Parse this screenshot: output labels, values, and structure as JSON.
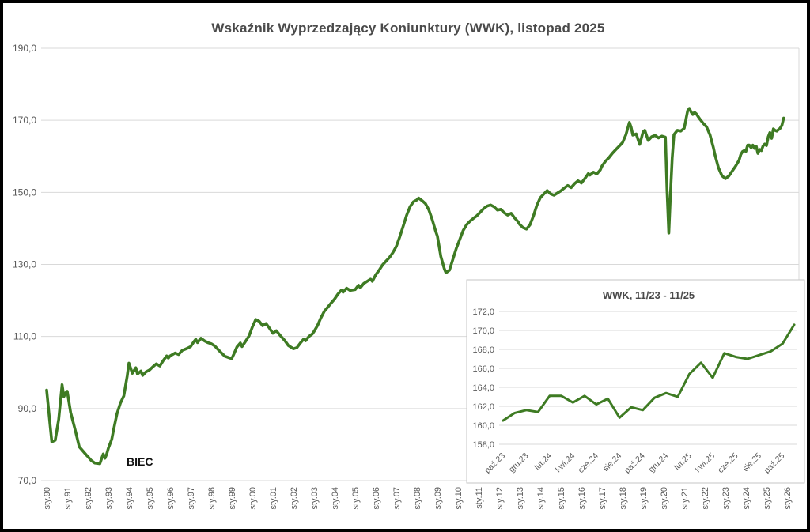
{
  "page": {
    "title": "Wskaźnik Wyprzedzający Koniunktury (WWK), listopad 2025",
    "annotation": "BIEC"
  },
  "chart_data": [
    {
      "type": "line",
      "title": "Wskaźnik Wyprzedzający Koniunktury (WWK), listopad 2025",
      "annotation": "BIEC",
      "series_name": "WWK",
      "line_color": "#3e7b23",
      "grid": true,
      "legend": "none",
      "ylim": [
        70,
        190
      ],
      "y_tick_labels": [
        "190,0",
        "170,0",
        "150,0",
        "130,0",
        "110,0",
        "90,0",
        "70,0"
      ],
      "y_tick_values": [
        190,
        170,
        150,
        130,
        110,
        90,
        70
      ],
      "x_tick_labels": [
        "sty.90",
        "sty.91",
        "sty.92",
        "sty.93",
        "sty.94",
        "sty.95",
        "sty.96",
        "sty.97",
        "sty.98",
        "sty.99",
        "sty.00",
        "sty.01",
        "sty.02",
        "sty.03",
        "sty.04",
        "sty.05",
        "sty.06",
        "sty.07",
        "sty.08",
        "sty.09",
        "sty.10",
        "sty.11",
        "sty.12",
        "sty.13",
        "sty.14",
        "sty.15",
        "sty.16",
        "sty.17",
        "sty.18",
        "sty.19",
        "sty.20",
        "sty.21",
        "sty.22",
        "sty.23",
        "sty.24",
        "sty.25",
        "sty.26"
      ],
      "x_unit": "months, sty.90 = 0",
      "points": [
        [
          0,
          95.1
        ],
        [
          2,
          85.5
        ],
        [
          3,
          80.8
        ],
        [
          5,
          81.2
        ],
        [
          7,
          87.0
        ],
        [
          9,
          96.6
        ],
        [
          10,
          93.3
        ],
        [
          11,
          94.3
        ],
        [
          12,
          94.8
        ],
        [
          14,
          88.9
        ],
        [
          16,
          85.2
        ],
        [
          17,
          83.4
        ],
        [
          19,
          79.4
        ],
        [
          21,
          78.3
        ],
        [
          23,
          77.2
        ],
        [
          24,
          76.7
        ],
        [
          26,
          75.6
        ],
        [
          28,
          74.9
        ],
        [
          31,
          74.7
        ],
        [
          33,
          77.4
        ],
        [
          34,
          76.2
        ],
        [
          35,
          77.3
        ],
        [
          36,
          79.0
        ],
        [
          38,
          81.5
        ],
        [
          39,
          84.0
        ],
        [
          41,
          88.5
        ],
        [
          43,
          91.5
        ],
        [
          45,
          93.5
        ],
        [
          47,
          99.0
        ],
        [
          48,
          102.6
        ],
        [
          50,
          99.8
        ],
        [
          52,
          101.3
        ],
        [
          53,
          99.6
        ],
        [
          55,
          100.4
        ],
        [
          56,
          99.2
        ],
        [
          58,
          100.2
        ],
        [
          60,
          100.7
        ],
        [
          62,
          101.6
        ],
        [
          64,
          102.4
        ],
        [
          66,
          101.8
        ],
        [
          68,
          103.3
        ],
        [
          70,
          104.6
        ],
        [
          71,
          104.0
        ],
        [
          72,
          104.6
        ],
        [
          75,
          105.4
        ],
        [
          77,
          105.0
        ],
        [
          79,
          106.1
        ],
        [
          82,
          106.7
        ],
        [
          84,
          107.2
        ],
        [
          86,
          108.6
        ],
        [
          87,
          109.2
        ],
        [
          88,
          108.3
        ],
        [
          90,
          109.5
        ],
        [
          92,
          108.8
        ],
        [
          94,
          108.3
        ],
        [
          96,
          108.0
        ],
        [
          98,
          107.4
        ],
        [
          100,
          106.4
        ],
        [
          102,
          105.4
        ],
        [
          104,
          104.5
        ],
        [
          107,
          104.0
        ],
        [
          108,
          103.9
        ],
        [
          109,
          104.9
        ],
        [
          111,
          107.1
        ],
        [
          113,
          108.2
        ],
        [
          114,
          107.2
        ],
        [
          116,
          108.6
        ],
        [
          118,
          110.1
        ],
        [
          120,
          112.6
        ],
        [
          122,
          114.7
        ],
        [
          124,
          114.2
        ],
        [
          126,
          113.0
        ],
        [
          128,
          113.6
        ],
        [
          130,
          112.3
        ],
        [
          132,
          110.9
        ],
        [
          134,
          111.6
        ],
        [
          136,
          110.4
        ],
        [
          139,
          108.8
        ],
        [
          141,
          107.5
        ],
        [
          144,
          106.6
        ],
        [
          146,
          106.9
        ],
        [
          148,
          108.2
        ],
        [
          150,
          109.3
        ],
        [
          151,
          108.8
        ],
        [
          153,
          110.0
        ],
        [
          155,
          110.7
        ],
        [
          156,
          111.4
        ],
        [
          158,
          113.0
        ],
        [
          160,
          115.2
        ],
        [
          162,
          117.0
        ],
        [
          164,
          118.1
        ],
        [
          166,
          119.3
        ],
        [
          168,
          120.4
        ],
        [
          170,
          121.8
        ],
        [
          172,
          122.9
        ],
        [
          173,
          122.3
        ],
        [
          175,
          123.4
        ],
        [
          177,
          122.8
        ],
        [
          180,
          123.0
        ],
        [
          182,
          124.2
        ],
        [
          183,
          123.5
        ],
        [
          185,
          124.7
        ],
        [
          187,
          125.3
        ],
        [
          189,
          125.9
        ],
        [
          190,
          125.3
        ],
        [
          192,
          127.1
        ],
        [
          194,
          128.4
        ],
        [
          196,
          129.9
        ],
        [
          198,
          130.9
        ],
        [
          200,
          131.9
        ],
        [
          202,
          133.3
        ],
        [
          204,
          135.0
        ],
        [
          206,
          137.6
        ],
        [
          208,
          140.6
        ],
        [
          210,
          143.6
        ],
        [
          212,
          146.0
        ],
        [
          214,
          147.4
        ],
        [
          216,
          147.9
        ],
        [
          217,
          148.4
        ],
        [
          219,
          147.7
        ],
        [
          221,
          146.9
        ],
        [
          223,
          145.1
        ],
        [
          225,
          142.4
        ],
        [
          227,
          139.2
        ],
        [
          228,
          137.8
        ],
        [
          230,
          132.2
        ],
        [
          232,
          128.8
        ],
        [
          233,
          127.7
        ],
        [
          235,
          128.4
        ],
        [
          237,
          131.4
        ],
        [
          239,
          134.4
        ],
        [
          241,
          136.9
        ],
        [
          243,
          139.4
        ],
        [
          245,
          141.0
        ],
        [
          247,
          142.0
        ],
        [
          249,
          142.8
        ],
        [
          251,
          143.5
        ],
        [
          253,
          144.5
        ],
        [
          255,
          145.5
        ],
        [
          257,
          146.2
        ],
        [
          259,
          146.5
        ],
        [
          261,
          146.0
        ],
        [
          263,
          145.1
        ],
        [
          265,
          145.3
        ],
        [
          267,
          144.3
        ],
        [
          269,
          143.7
        ],
        [
          271,
          144.2
        ],
        [
          273,
          142.9
        ],
        [
          275,
          141.9
        ],
        [
          276,
          141.1
        ],
        [
          278,
          140.2
        ],
        [
          280,
          139.8
        ],
        [
          282,
          141.0
        ],
        [
          284,
          143.4
        ],
        [
          286,
          146.4
        ],
        [
          288,
          148.5
        ],
        [
          290,
          149.5
        ],
        [
          292,
          150.5
        ],
        [
          294,
          149.6
        ],
        [
          296,
          149.2
        ],
        [
          298,
          149.8
        ],
        [
          300,
          150.4
        ],
        [
          302,
          151.2
        ],
        [
          304,
          151.9
        ],
        [
          306,
          151.3
        ],
        [
          308,
          152.4
        ],
        [
          310,
          153.2
        ],
        [
          312,
          152.6
        ],
        [
          314,
          153.8
        ],
        [
          316,
          155.2
        ],
        [
          317,
          154.8
        ],
        [
          319,
          155.6
        ],
        [
          321,
          155.1
        ],
        [
          323,
          156.2
        ],
        [
          324,
          157.3
        ],
        [
          326,
          158.6
        ],
        [
          328,
          159.6
        ],
        [
          330,
          160.8
        ],
        [
          332,
          161.8
        ],
        [
          334,
          162.8
        ],
        [
          336,
          163.8
        ],
        [
          338,
          166.0
        ],
        [
          340,
          169.4
        ],
        [
          341,
          168.1
        ],
        [
          342,
          165.9
        ],
        [
          344,
          166.2
        ],
        [
          346,
          163.3
        ],
        [
          348,
          166.8
        ],
        [
          349,
          167.2
        ],
        [
          351,
          164.4
        ],
        [
          353,
          165.4
        ],
        [
          355,
          165.8
        ],
        [
          357,
          165.1
        ],
        [
          359,
          165.6
        ],
        [
          361,
          165.3
        ],
        [
          362,
          150.5
        ],
        [
          363,
          138.7
        ],
        [
          364,
          150.0
        ],
        [
          365,
          159.5
        ],
        [
          366,
          166.0
        ],
        [
          368,
          167.2
        ],
        [
          370,
          167.0
        ],
        [
          372,
          167.8
        ],
        [
          374,
          172.6
        ],
        [
          375,
          173.3
        ],
        [
          376,
          172.3
        ],
        [
          377,
          171.6
        ],
        [
          378,
          172.2
        ],
        [
          379,
          171.8
        ],
        [
          381,
          170.4
        ],
        [
          383,
          169.2
        ],
        [
          385,
          168.2
        ],
        [
          387,
          166.0
        ],
        [
          389,
          162.5
        ],
        [
          390,
          160.3
        ],
        [
          392,
          156.8
        ],
        [
          394,
          154.6
        ],
        [
          396,
          153.8
        ],
        [
          398,
          154.5
        ],
        [
          400,
          155.9
        ],
        [
          402,
          157.3
        ],
        [
          404,
          158.9
        ],
        [
          405,
          160.5
        ],
        [
          406,
          161.3
        ],
        [
          407,
          161.6
        ],
        [
          408,
          161.4
        ],
        [
          409,
          163.1
        ],
        [
          410,
          163.1
        ],
        [
          411,
          162.4
        ],
        [
          412,
          163.1
        ],
        [
          413,
          162.2
        ],
        [
          414,
          162.8
        ],
        [
          415,
          160.8
        ],
        [
          416,
          161.9
        ],
        [
          417,
          161.6
        ],
        [
          418,
          162.9
        ],
        [
          419,
          163.4
        ],
        [
          420,
          163.0
        ],
        [
          421,
          165.4
        ],
        [
          422,
          166.6
        ],
        [
          423,
          165.0
        ],
        [
          424,
          167.6
        ],
        [
          425,
          167.2
        ],
        [
          426,
          167.0
        ],
        [
          427,
          167.4
        ],
        [
          428,
          167.8
        ],
        [
          429,
          168.6
        ],
        [
          430,
          170.6
        ]
      ]
    },
    {
      "type": "line",
      "title": "WWK, 11/23 - 11/25",
      "line_color": "#3e7b23",
      "grid": true,
      "ylim": [
        158,
        172
      ],
      "y_tick_labels": [
        "172,0",
        "170,0",
        "168,0",
        "166,0",
        "164,0",
        "162,0",
        "160,0",
        "158,0"
      ],
      "y_tick_values": [
        172,
        170,
        168,
        166,
        164,
        162,
        160,
        158
      ],
      "x_tick_labels": [
        "paź.23",
        "gru.23",
        "lut.24",
        "kwi.24",
        "cze.24",
        "sie.24",
        "paź.24",
        "gru.24",
        "lut.25",
        "kwi.25",
        "cze.25",
        "sie.25",
        "paź.25"
      ],
      "categories": [
        "paź.23",
        "lis.23",
        "gru.23",
        "sty.24",
        "lut.24",
        "mar.24",
        "kwi.24",
        "maj.24",
        "cze.24",
        "lip.24",
        "sie.24",
        "wrz.24",
        "paź.24",
        "lis.24",
        "gru.24",
        "sty.25",
        "lut.25",
        "mar.25",
        "kwi.25",
        "maj.25",
        "cze.25",
        "lip.25",
        "sie.25",
        "wrz.25",
        "paź.25",
        "lis.25"
      ],
      "values": [
        160.5,
        161.3,
        161.6,
        161.4,
        163.1,
        163.1,
        162.4,
        163.1,
        162.2,
        162.8,
        160.8,
        161.9,
        161.6,
        162.9,
        163.4,
        163.0,
        165.4,
        166.6,
        165.0,
        167.6,
        167.2,
        167.0,
        167.4,
        167.8,
        168.6,
        170.6
      ]
    }
  ]
}
